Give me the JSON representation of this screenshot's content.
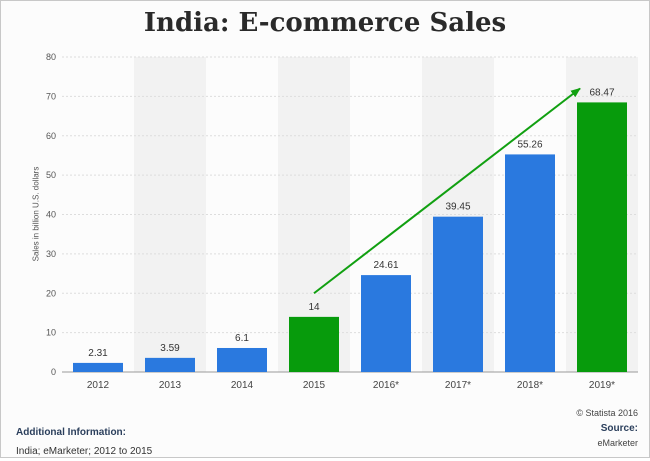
{
  "title": "India: E-commerce Sales",
  "credit": "© Statista 2016",
  "additional_info": {
    "heading": "Additional Information:",
    "text": "India; eMarketer; 2012 to 2015"
  },
  "source": {
    "heading": "Source:",
    "text": "eMarketer"
  },
  "colors": {
    "blue": "#2a79df",
    "green": "#079b0c",
    "arrow": "#11a011",
    "stripe": "#f2f2f2"
  },
  "chart_data": {
    "type": "bar",
    "title": "India: E-commerce Sales",
    "xlabel": "",
    "ylabel": "Sales in billion U.S. dollars",
    "ylim": [
      0,
      80
    ],
    "yticks": [
      0,
      10,
      20,
      30,
      40,
      50,
      60,
      70,
      80
    ],
    "categories": [
      "2012",
      "2013",
      "2014",
      "2015",
      "2016*",
      "2017*",
      "2018*",
      "2019*"
    ],
    "values": [
      2.31,
      3.59,
      6.1,
      14,
      24.61,
      39.45,
      55.26,
      68.47
    ],
    "value_labels": [
      "2.31",
      "3.59",
      "6.1",
      "14",
      "24.61",
      "39.45",
      "55.26",
      "68.47"
    ],
    "bar_colors": [
      "blue",
      "blue",
      "blue",
      "green",
      "blue",
      "blue",
      "blue",
      "green"
    ],
    "grid": true,
    "annotations": [
      {
        "type": "arrow",
        "from": {
          "category": "2015",
          "value": 20
        },
        "to": {
          "category": "2019*",
          "value": 72
        },
        "color": "green"
      }
    ]
  }
}
